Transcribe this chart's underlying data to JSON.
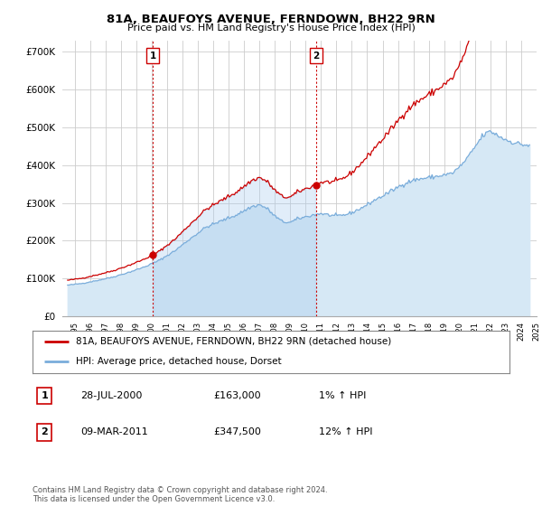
{
  "title": "81A, BEAUFOYS AVENUE, FERNDOWN, BH22 9RN",
  "subtitle": "Price paid vs. HM Land Registry's House Price Index (HPI)",
  "ytick_values": [
    0,
    100000,
    200000,
    300000,
    400000,
    500000,
    600000,
    700000
  ],
  "ylim": [
    0,
    730000
  ],
  "sale1_price": 163000,
  "sale2_price": 347500,
  "line_color_property": "#cc0000",
  "line_color_hpi": "#7aaddb",
  "fill_color_hpi": "#d6e8f5",
  "fill_between_color": "#ddeeff",
  "marker_color_property": "#cc0000",
  "vline_color": "#cc0000",
  "legend_label1": "81A, BEAUFOYS AVENUE, FERNDOWN, BH22 9RN (detached house)",
  "legend_label2": "HPI: Average price, detached house, Dorset",
  "footer": "Contains HM Land Registry data © Crown copyright and database right 2024.\nThis data is licensed under the Open Government Licence v3.0.",
  "background_color": "#ffffff",
  "grid_color": "#cccccc"
}
